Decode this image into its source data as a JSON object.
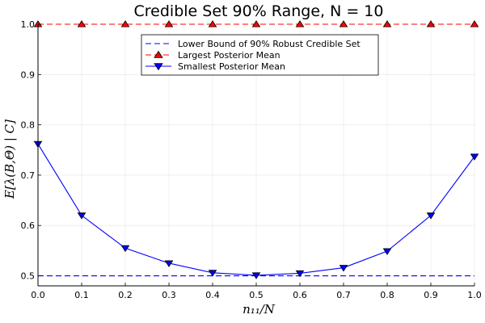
{
  "chart_data": {
    "type": "line",
    "title": "Credible Set 90% Range, N = 10",
    "xlabel": "n₁₁/N",
    "ylabel": "E[λ(B,Θ) | C]",
    "xlim": [
      0.0,
      1.0
    ],
    "ylim": [
      0.48,
      1.0
    ],
    "xticks": [
      0.0,
      0.1,
      0.2,
      0.3,
      0.4,
      0.5,
      0.6,
      0.7,
      0.8,
      0.9,
      1.0
    ],
    "xtick_labels": [
      "0.0",
      "0.1",
      "0.2",
      "0.3",
      "0.4",
      "0.5",
      "0.6",
      "0.7",
      "0.8",
      "0.9",
      "1.0"
    ],
    "yticks": [
      0.5,
      0.6,
      0.7,
      0.8,
      0.9,
      1.0
    ],
    "ytick_labels": [
      "0.5",
      "0.6",
      "0.7",
      "0.8",
      "0.9",
      "1.0"
    ],
    "grid": true,
    "legend_position": "top-center",
    "x": [
      0.0,
      0.1,
      0.2,
      0.3,
      0.4,
      0.5,
      0.6,
      0.7,
      0.8,
      0.9,
      1.0
    ],
    "series": [
      {
        "name": "Lower Bound of 90% Robust Credible Set",
        "style": "dashed",
        "color": "#0000ff",
        "values": [
          0.5,
          0.5,
          0.5,
          0.5,
          0.5,
          0.5,
          0.5,
          0.5,
          0.5,
          0.5,
          0.5
        ]
      },
      {
        "name": "Largest Posterior Mean",
        "style": "dashed",
        "marker": "triangle-up",
        "color": "#ff0000",
        "values": [
          1.0,
          1.0,
          1.0,
          1.0,
          1.0,
          1.0,
          1.0,
          1.0,
          1.0,
          1.0,
          1.0
        ]
      },
      {
        "name": "Smallest Posterior Mean",
        "style": "solid",
        "marker": "triangle-down",
        "color": "#0000ff",
        "values": [
          0.762,
          0.62,
          0.555,
          0.525,
          0.506,
          0.501,
          0.505,
          0.516,
          0.549,
          0.62,
          0.737
        ]
      }
    ]
  }
}
